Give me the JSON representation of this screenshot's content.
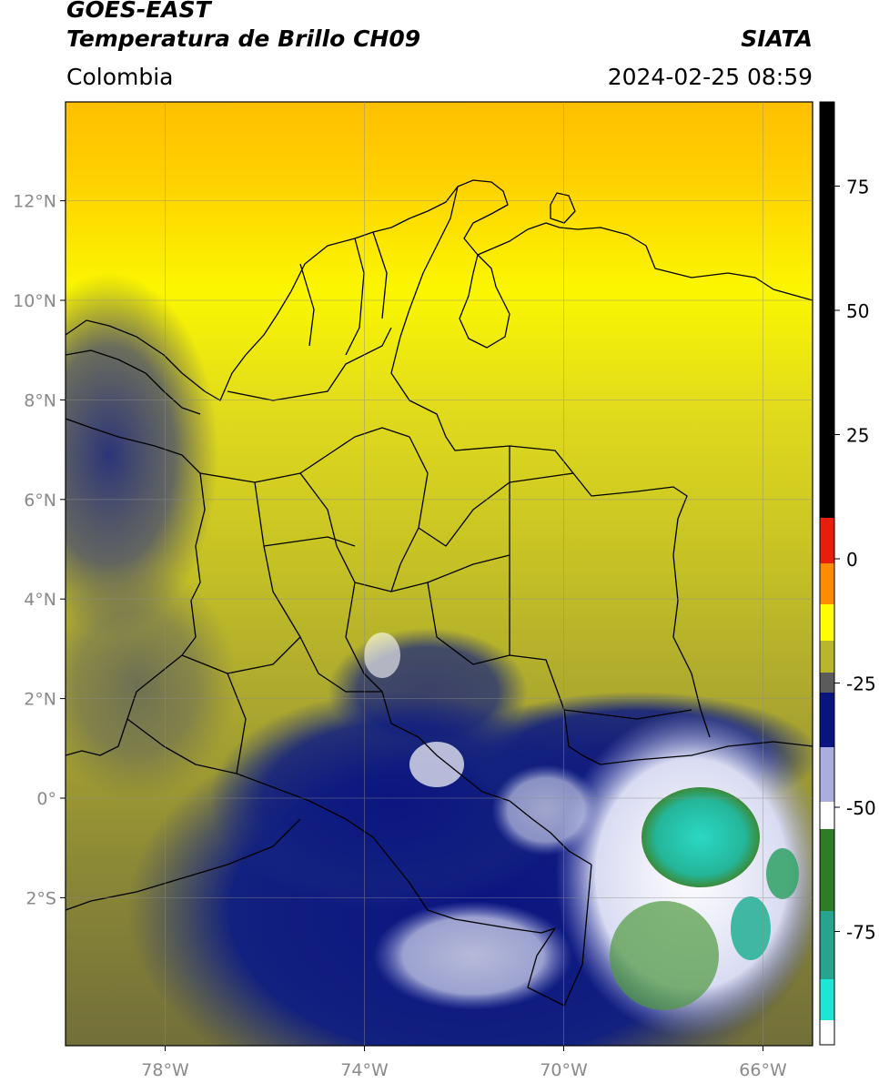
{
  "header": {
    "satellite": "GOES-EAST",
    "product": "Temperatura de Brillo CH09",
    "region": "Colombia",
    "organization": "SIATA",
    "timestamp": "2024-02-25 08:59"
  },
  "map": {
    "lon_ticks": [
      {
        "value": -78,
        "label": "78°W"
      },
      {
        "value": -74,
        "label": "74°W"
      },
      {
        "value": -70,
        "label": "70°W"
      },
      {
        "value": -66,
        "label": "66°W"
      }
    ],
    "lat_ticks": [
      {
        "value": 12,
        "label": "12°N"
      },
      {
        "value": 10,
        "label": "10°N"
      },
      {
        "value": 8,
        "label": "8°N"
      },
      {
        "value": 6,
        "label": "6°N"
      },
      {
        "value": 4,
        "label": "4°N"
      },
      {
        "value": 2,
        "label": "2°N"
      },
      {
        "value": 0,
        "label": "0°"
      },
      {
        "value": -2,
        "label": "2°S"
      }
    ],
    "lon_range": [
      -80,
      -65
    ],
    "lat_range": [
      -5,
      14
    ],
    "grid": true
  },
  "colorbar": {
    "range": [
      -95,
      90
    ],
    "ticks": [
      {
        "value": 75,
        "label": "75"
      },
      {
        "value": 50,
        "label": "50"
      },
      {
        "value": 25,
        "label": "25"
      },
      {
        "value": 0,
        "label": "0"
      },
      {
        "value": -25,
        "label": "-25"
      },
      {
        "value": -50,
        "label": "-50"
      },
      {
        "value": -75,
        "label": "-75"
      }
    ],
    "unit": ""
  },
  "colors": {
    "warm_black": "#000000",
    "red": "#e81e0c",
    "orange": "#ffb100",
    "yellow": "#ffff00",
    "olive": "#b9b629",
    "gray": "#5b5b5b",
    "navy": "#0a1480",
    "white": "#ffffff",
    "green": "#2e7d26",
    "cyan": "#1ee6d7"
  }
}
